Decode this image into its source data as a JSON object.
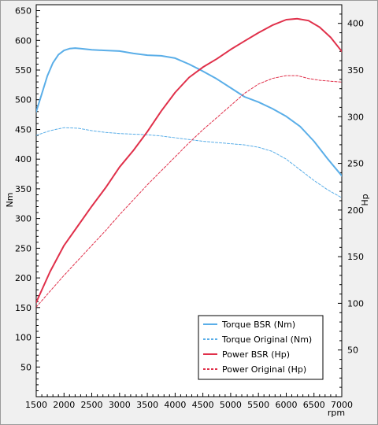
{
  "chart_data": {
    "type": "line",
    "xlabel": "rpm",
    "ylabel": "Nm",
    "y2label": "Hp",
    "xlim": [
      1500,
      7000
    ],
    "ylim": [
      0,
      660
    ],
    "y2lim": [
      0,
      420
    ],
    "x_ticks": [
      1500,
      2000,
      2500,
      3000,
      3500,
      4000,
      4500,
      5000,
      5500,
      6000,
      6500,
      7000
    ],
    "y_ticks": [
      50,
      100,
      150,
      200,
      250,
      300,
      350,
      400,
      450,
      500,
      550,
      600,
      650
    ],
    "y2_ticks": [
      50,
      100,
      150,
      200,
      250,
      300,
      350,
      400
    ],
    "grid": false,
    "legend_position": "bottom-right",
    "series": [
      {
        "name": "Torque BSR (Nm)",
        "axis": "left",
        "color": "#5aaee8",
        "dash": "solid",
        "x": [
          1500,
          1600,
          1700,
          1800,
          1900,
          2000,
          2100,
          2200,
          2300,
          2500,
          2750,
          3000,
          3250,
          3500,
          3750,
          4000,
          4250,
          4500,
          4750,
          5000,
          5250,
          5500,
          5750,
          6000,
          6250,
          6500,
          6750,
          7000
        ],
        "values": [
          480,
          510,
          540,
          562,
          576,
          583,
          586,
          587,
          586,
          584,
          583,
          582,
          578,
          575,
          574,
          570,
          560,
          548,
          535,
          520,
          505,
          496,
          485,
          472,
          455,
          430,
          400,
          372
        ]
      },
      {
        "name": "Torque Original (Nm)",
        "axis": "left",
        "color": "#5aaee8",
        "dash": "dashed",
        "x": [
          1500,
          1750,
          2000,
          2250,
          2500,
          2750,
          3000,
          3250,
          3500,
          3750,
          4000,
          4250,
          4500,
          4750,
          5000,
          5250,
          5500,
          5750,
          6000,
          6250,
          6500,
          6750,
          7000
        ],
        "values": [
          440,
          448,
          453,
          452,
          448,
          445,
          443,
          442,
          441,
          439,
          436,
          433,
          430,
          428,
          426,
          424,
          420,
          413,
          400,
          382,
          364,
          348,
          335
        ]
      },
      {
        "name": "Power BSR (Hp)",
        "axis": "right",
        "color": "#e0304a",
        "dash": "solid",
        "x": [
          1500,
          1750,
          2000,
          2250,
          2500,
          2750,
          3000,
          3250,
          3500,
          3750,
          4000,
          4250,
          4500,
          4750,
          5000,
          5250,
          5500,
          5750,
          6000,
          6200,
          6400,
          6600,
          6800,
          7000
        ],
        "values": [
          101,
          134,
          162,
          183,
          204,
          224,
          246,
          264,
          284,
          306,
          326,
          342,
          353,
          362,
          372,
          381,
          390,
          398,
          404,
          405,
          403,
          396,
          385,
          370
        ]
      },
      {
        "name": "Power Original (Hp)",
        "axis": "right",
        "color": "#e0304a",
        "dash": "dashed",
        "x": [
          1500,
          1750,
          2000,
          2250,
          2500,
          2750,
          3000,
          3250,
          3500,
          3750,
          4000,
          4250,
          4500,
          4750,
          5000,
          5250,
          5500,
          5750,
          6000,
          6200,
          6400,
          6600,
          6800,
          7000
        ],
        "values": [
          96,
          113,
          130,
          146,
          162,
          178,
          195,
          211,
          227,
          242,
          257,
          272,
          286,
          299,
          312,
          325,
          335,
          341,
          344,
          344,
          341,
          339,
          338,
          337
        ]
      }
    ]
  }
}
